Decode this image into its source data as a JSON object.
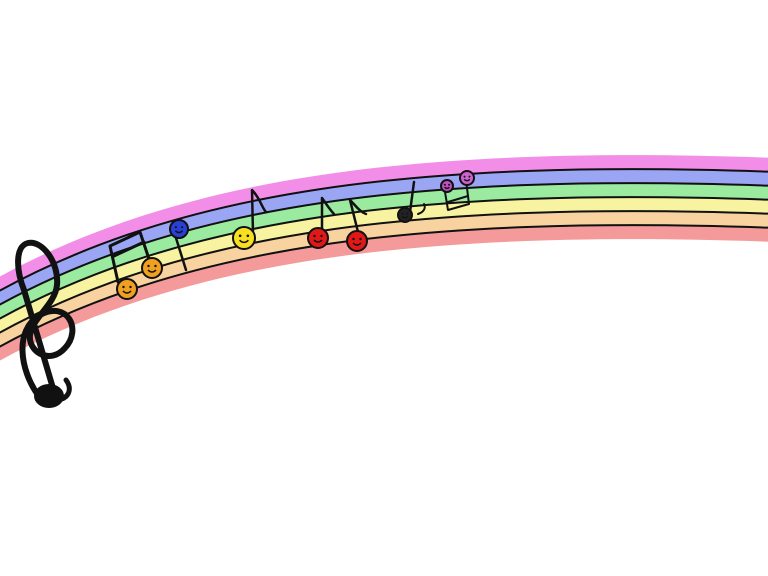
{
  "scene": {
    "description_visible_text": "",
    "background_color": "#ffffff",
    "rainbow_band_colors": [
      "#f28ee8",
      "#9aa6f4",
      "#9aeaa0",
      "#f8f3a0",
      "#f8d3a0",
      "#f49a9a"
    ],
    "staff_line_color": "#111111",
    "note_colors": [
      "#f0a020",
      "#f0a020",
      "#2840d8",
      "#f8e020",
      "#e01818",
      "#e01818",
      "#222222",
      "#c050c0",
      "#d060d0"
    ],
    "icons": [
      "treble-clef-icon",
      "beamed-eighth-notes-icon",
      "quarter-note-icon",
      "eighth-note-icon",
      "sixteenth-note-icon",
      "smiley-face-icon"
    ]
  }
}
